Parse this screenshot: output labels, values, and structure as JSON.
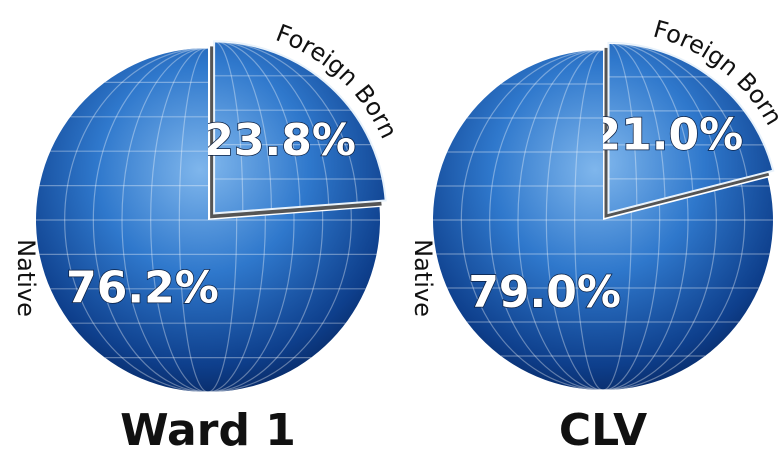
{
  "chart_data": [
    {
      "type": "pie",
      "title": "Ward 1",
      "categories": [
        "Native",
        "Foreign Born"
      ],
      "values": [
        76.2,
        23.8
      ],
      "value_labels": [
        "76.2%",
        "23.8%"
      ],
      "color": "#1a5fb4"
    },
    {
      "type": "pie",
      "title": "CLV",
      "categories": [
        "Native",
        "Foreign Born"
      ],
      "values": [
        79.0,
        21.0
      ],
      "value_labels": [
        "79.0%",
        "21.0%"
      ],
      "color": "#1a5fb4"
    }
  ]
}
